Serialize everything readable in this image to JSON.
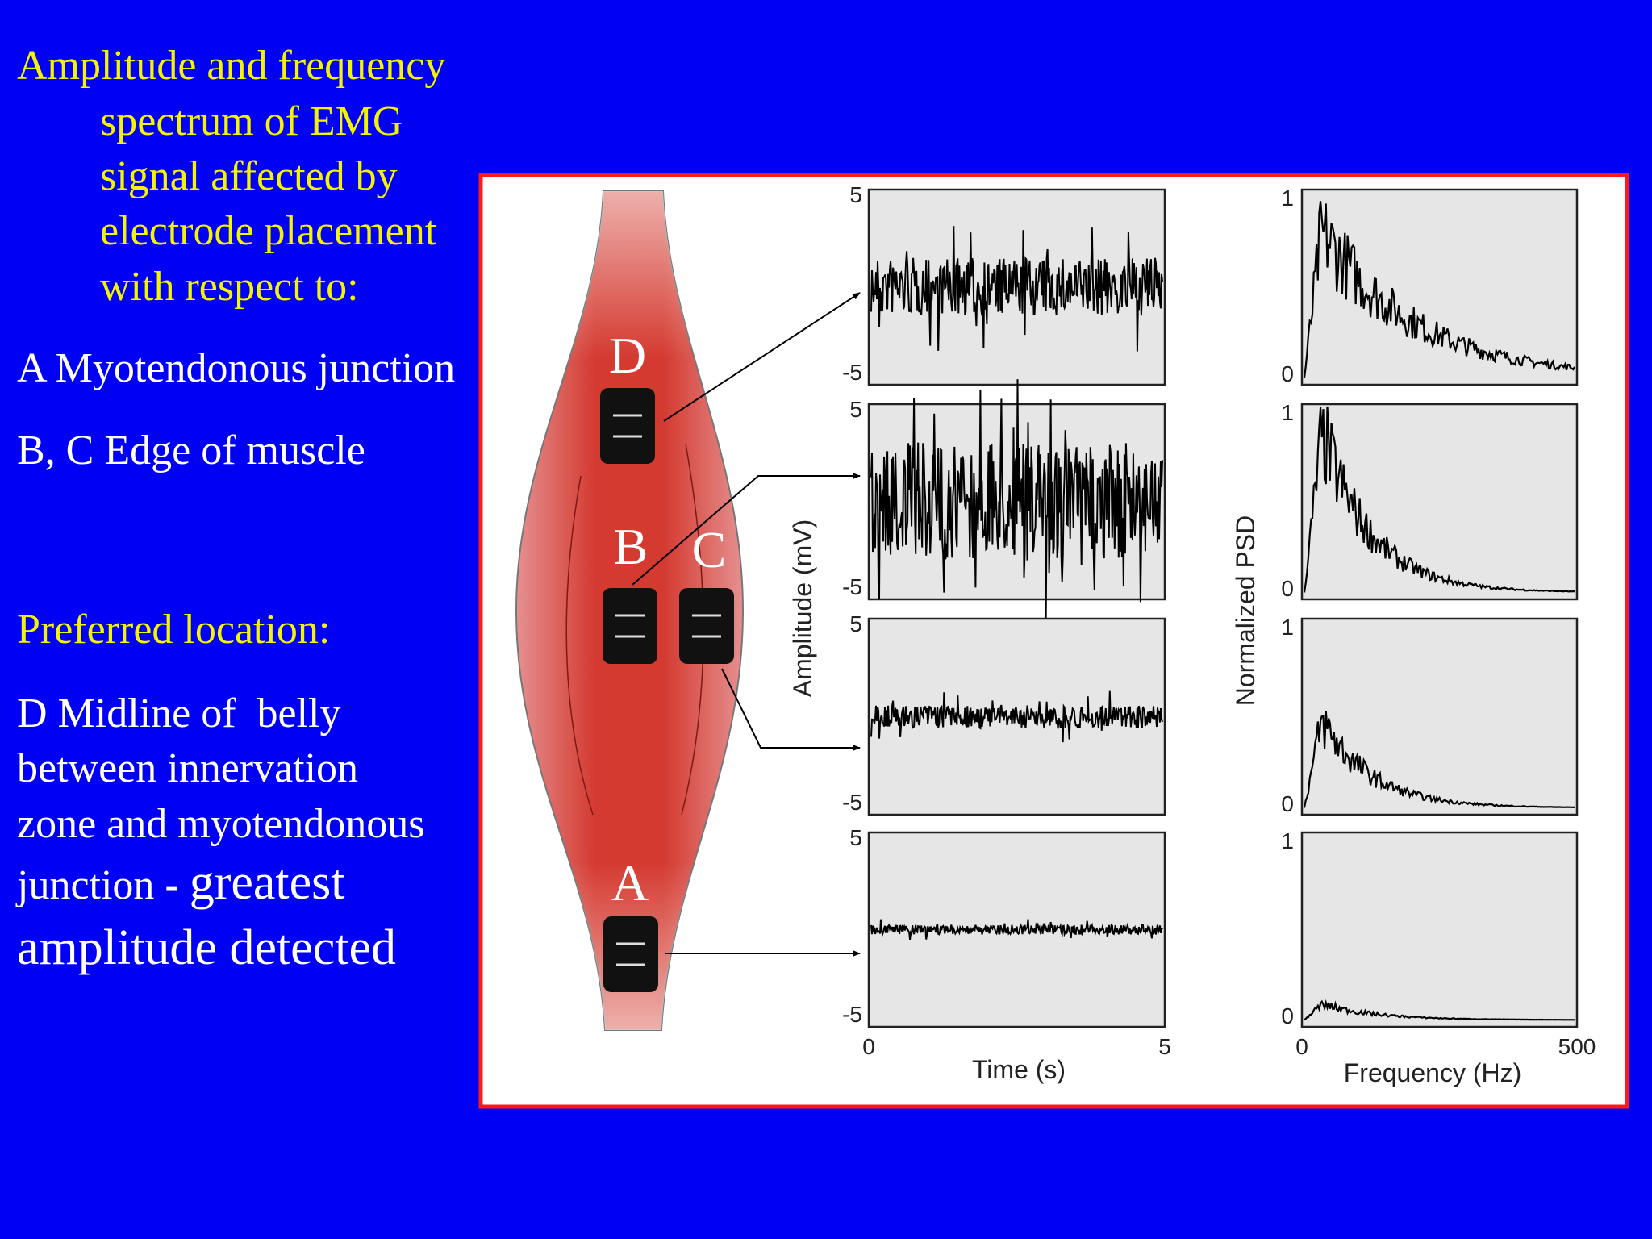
{
  "slide": {
    "heading": [
      "Amplitude and frequency",
      "spectrum of EMG",
      "signal affected by",
      "electrode placement",
      "with respect to:"
    ],
    "items": [
      "A Myotendonous junction",
      "B, C Edge of muscle"
    ],
    "preferred_heading": "Preferred location:",
    "preferred_lines": [
      "D Midline of  belly",
      "between innervation",
      "zone and myotendonous",
      "junction - "
    ],
    "emphasis": [
      "greatest",
      "amplitude detected"
    ]
  },
  "figure": {
    "electrodes": [
      "D",
      "B",
      "C",
      "A"
    ],
    "amplitude_axis": {
      "label": "Amplitude (mV)",
      "ylim": [
        -5,
        5
      ],
      "yticks": [
        -5,
        5
      ]
    },
    "time_axis": {
      "label": "Time (s)",
      "xlim": [
        0,
        5
      ],
      "xticks": [
        0,
        5
      ]
    },
    "psd_axis": {
      "label": "Normalized PSD",
      "ylim": [
        0,
        1
      ],
      "yticks": [
        0,
        1
      ]
    },
    "frequency_axis": {
      "label": "Frequency (Hz)",
      "xlim": [
        0,
        500
      ],
      "xticks": [
        0,
        500
      ]
    }
  }
}
